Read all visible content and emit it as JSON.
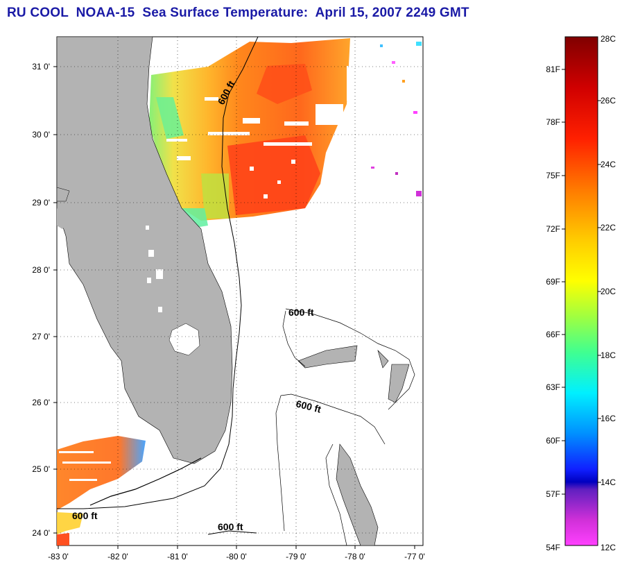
{
  "title": "RU COOL  NOAA-15  Sea Surface Temperature:  April 15, 2007 2249 GMT",
  "map": {
    "lon_labels": [
      "-83 0'",
      "-82 0'",
      "-81 0'",
      "-80 0'",
      "-79 0'",
      "-78 0'",
      "-77 0'"
    ],
    "lat_labels": [
      "31 0'",
      "30 0'",
      "29 0'",
      "28 0'",
      "27 0'",
      "26 0'",
      "25 0'",
      "24 0'"
    ],
    "contour_labels": [
      "600 ft",
      "600 ft",
      "600 ft",
      "600 ft",
      "600 ft"
    ],
    "land_color": "#b3b3b3"
  },
  "colorbar": {
    "f_labels": [
      "81F",
      "78F",
      "75F",
      "72F",
      "69F",
      "66F",
      "63F",
      "60F",
      "57F",
      "54F"
    ],
    "c_labels": [
      "28C",
      "26C",
      "24C",
      "22C",
      "20C",
      "18C",
      "16C",
      "14C",
      "12C"
    ]
  }
}
